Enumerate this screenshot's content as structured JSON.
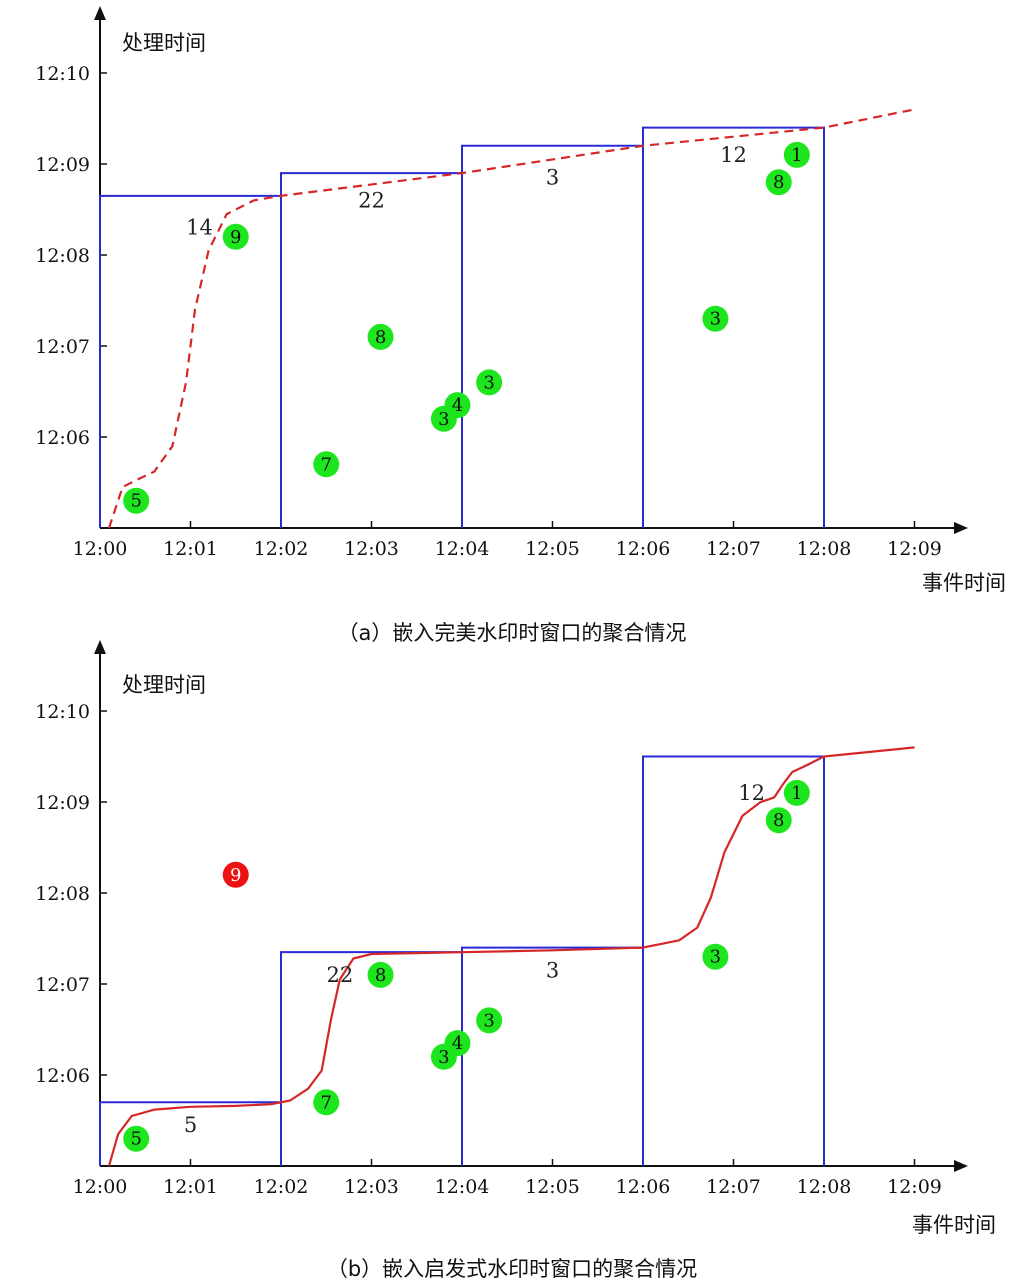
{
  "chart_data": [
    {
      "type": "scatter",
      "caption": "（a）嵌入完美水印时窗口的聚合情况",
      "xlabel": "事件时间",
      "ylabel": "处理时间",
      "x_ticks": [
        "12:00",
        "12:01",
        "12:02",
        "12:03",
        "12:04",
        "12:05",
        "12:06",
        "12:07",
        "12:08",
        "12:09"
      ],
      "y_ticks": [
        "12:06",
        "12:07",
        "12:08",
        "12:09",
        "12:10"
      ],
      "xlim": [
        0,
        9.6
      ],
      "ylim": [
        5.0,
        10.7
      ],
      "watermark": {
        "style": "dashed",
        "color": "#d62728",
        "x": [
          0.1,
          0.25,
          0.45,
          0.6,
          0.8,
          0.95,
          1.05,
          1.2,
          1.4,
          1.7,
          2.0,
          4.0,
          6.0,
          8.0,
          9.0
        ],
        "y": [
          5.0,
          5.45,
          5.55,
          5.62,
          5.9,
          6.6,
          7.4,
          8.05,
          8.45,
          8.6,
          8.65,
          8.9,
          9.2,
          9.4,
          9.6
        ]
      },
      "windows": [
        {
          "x0": 0,
          "x1": 2,
          "y_top": 8.65,
          "label": "14",
          "label_x": 1.1,
          "label_y": 8.3
        },
        {
          "x0": 2,
          "x1": 4,
          "y_top": 8.9,
          "label": "22",
          "label_x": 3.0,
          "label_y": 8.6
        },
        {
          "x0": 4,
          "x1": 6,
          "y_top": 9.2,
          "label": "3",
          "label_x": 5.0,
          "label_y": 8.85
        },
        {
          "x0": 6,
          "x1": 8,
          "y_top": 9.4,
          "label": "12",
          "label_x": 7.0,
          "label_y": 9.1
        }
      ],
      "points": [
        {
          "label": "5",
          "x": 0.4,
          "y": 5.3,
          "color": "#1ee61e"
        },
        {
          "label": "9",
          "x": 1.5,
          "y": 8.2,
          "color": "#1ee61e"
        },
        {
          "label": "7",
          "x": 2.5,
          "y": 5.7,
          "color": "#1ee61e"
        },
        {
          "label": "8",
          "x": 3.1,
          "y": 7.1,
          "color": "#1ee61e"
        },
        {
          "label": "3",
          "x": 3.8,
          "y": 6.2,
          "color": "#1ee61e"
        },
        {
          "label": "4",
          "x": 3.95,
          "y": 6.35,
          "color": "#1ee61e"
        },
        {
          "label": "3",
          "x": 4.3,
          "y": 6.6,
          "color": "#1ee61e"
        },
        {
          "label": "3",
          "x": 6.8,
          "y": 7.3,
          "color": "#1ee61e"
        },
        {
          "label": "8",
          "x": 7.5,
          "y": 8.8,
          "color": "#1ee61e"
        },
        {
          "label": "1",
          "x": 7.7,
          "y": 9.1,
          "color": "#1ee61e"
        }
      ]
    },
    {
      "type": "scatter",
      "caption": "（b）嵌入启发式水印时窗口的聚合情况",
      "xlabel": "事件时间",
      "ylabel": "处理时间",
      "x_ticks": [
        "12:00",
        "12:01",
        "12:02",
        "12:03",
        "12:04",
        "12:05",
        "12:06",
        "12:07",
        "12:08",
        "12:09"
      ],
      "y_ticks": [
        "12:06",
        "12:07",
        "12:08",
        "12:09",
        "12:10"
      ],
      "xlim": [
        0,
        9.6
      ],
      "ylim": [
        5.0,
        10.7
      ],
      "watermark": {
        "style": "solid",
        "color": "#d62728",
        "x": [
          0.1,
          0.2,
          0.35,
          0.6,
          1.0,
          1.5,
          1.9,
          2.1,
          2.3,
          2.45,
          2.55,
          2.65,
          2.8,
          3.0,
          3.5,
          4.0,
          5.0,
          6.0,
          6.4,
          6.6,
          6.75,
          6.9,
          7.1,
          7.3,
          7.45,
          7.55,
          7.65,
          7.8,
          8.0,
          9.0
        ],
        "y": [
          5.0,
          5.35,
          5.55,
          5.62,
          5.65,
          5.66,
          5.68,
          5.72,
          5.85,
          6.05,
          6.6,
          7.05,
          7.28,
          7.33,
          7.34,
          7.35,
          7.37,
          7.4,
          7.48,
          7.62,
          7.95,
          8.45,
          8.85,
          9.0,
          9.05,
          9.2,
          9.33,
          9.4,
          9.5,
          9.6
        ]
      },
      "windows": [
        {
          "x0": 0,
          "x1": 2,
          "y_top": 5.7,
          "label": "5",
          "label_x": 1.0,
          "label_y": 5.45
        },
        {
          "x0": 2,
          "x1": 4,
          "y_top": 7.35,
          "label": "22",
          "label_x": 2.65,
          "label_y": 7.1
        },
        {
          "x0": 4,
          "x1": 6,
          "y_top": 7.4,
          "label": "3",
          "label_x": 5.0,
          "label_y": 7.15
        },
        {
          "x0": 6,
          "x1": 8,
          "y_top": 9.5,
          "label": "12",
          "label_x": 7.2,
          "label_y": 9.1
        }
      ],
      "points": [
        {
          "label": "5",
          "x": 0.4,
          "y": 5.3,
          "color": "#1ee61e"
        },
        {
          "label": "9",
          "x": 1.5,
          "y": 8.2,
          "color": "#ee1111"
        },
        {
          "label": "7",
          "x": 2.5,
          "y": 5.7,
          "color": "#1ee61e"
        },
        {
          "label": "8",
          "x": 3.1,
          "y": 7.1,
          "color": "#1ee61e"
        },
        {
          "label": "3",
          "x": 3.8,
          "y": 6.2,
          "color": "#1ee61e"
        },
        {
          "label": "4",
          "x": 3.95,
          "y": 6.35,
          "color": "#1ee61e"
        },
        {
          "label": "3",
          "x": 4.3,
          "y": 6.6,
          "color": "#1ee61e"
        },
        {
          "label": "3",
          "x": 6.8,
          "y": 7.3,
          "color": "#1ee61e"
        },
        {
          "label": "8",
          "x": 7.5,
          "y": 8.8,
          "color": "#1ee61e"
        },
        {
          "label": "1",
          "x": 7.7,
          "y": 9.1,
          "color": "#1ee61e"
        }
      ]
    }
  ]
}
